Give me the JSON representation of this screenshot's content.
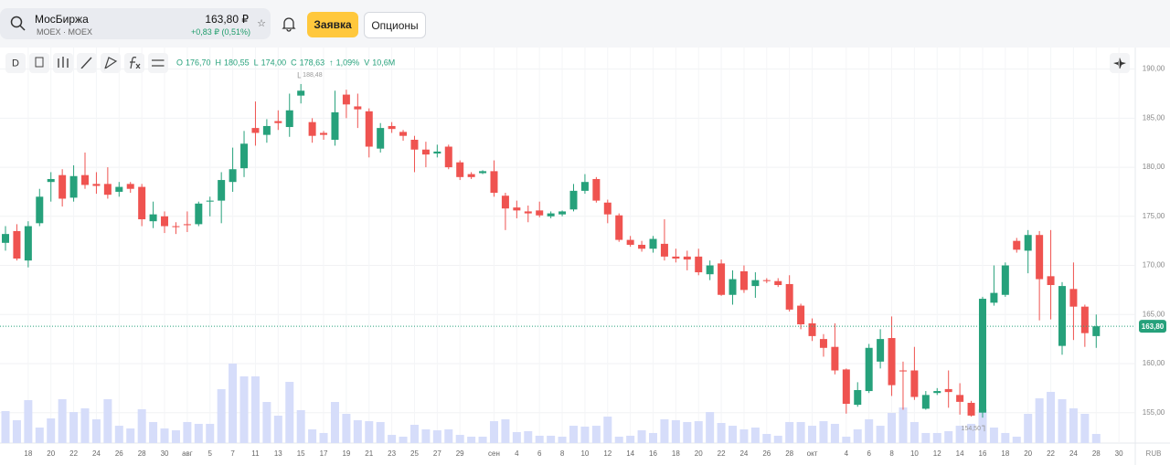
{
  "header": {
    "exchange": "МосБиржа",
    "ticker": "MOEX · MOEX",
    "price": "163,80 ₽",
    "change": "+0,83 ₽ (0,51%)",
    "order_button": "Заявка",
    "options_button": "Опционы"
  },
  "toolbar": {
    "interval": "D"
  },
  "chart_data": {
    "type": "candlestick",
    "categories": [
      null,
      null,
      "18",
      null,
      "20",
      null,
      "22",
      null,
      "24",
      null,
      "26",
      null,
      "28",
      null,
      "30",
      null,
      "авг",
      null,
      "5",
      null,
      "7",
      null,
      "11",
      null,
      "13",
      null,
      "15",
      null,
      "17",
      null,
      "19",
      null,
      "21",
      null,
      "23",
      null,
      "25",
      null,
      "27",
      null,
      "29",
      null,
      null,
      "сен",
      null,
      "4",
      null,
      "6",
      null,
      "8",
      null,
      "10",
      null,
      "12",
      null,
      "14",
      null,
      "16",
      null,
      "18",
      null,
      "20",
      null,
      "22",
      null,
      "24",
      null,
      "26",
      null,
      "28",
      null,
      "окт",
      null,
      null,
      "4",
      null,
      "6",
      null,
      "8",
      null,
      "10",
      null,
      "12",
      null,
      "14",
      null,
      "16",
      null,
      "18",
      null,
      "20",
      null,
      "22",
      null,
      "24",
      null,
      "28",
      null,
      "30"
    ],
    "open": [
      172.3,
      173.5,
      170.5,
      174.3,
      178.5,
      179.2,
      176.9,
      179.2,
      178.3,
      178.3,
      177.5,
      178.3,
      178.0,
      174.5,
      175.0,
      174.0,
      174.2,
      174.2,
      176.5,
      176.6,
      178.5,
      179.9,
      184.0,
      183.3,
      184.7,
      184.1,
      187.3,
      184.6,
      183.5,
      182.8,
      187.4,
      186.2,
      185.7,
      181.9,
      184.2,
      183.6,
      182.8,
      181.8,
      181.4,
      182.1,
      180.5,
      179.3,
      179.4,
      179.6,
      177.1,
      175.9,
      175.5,
      175.6,
      175.0,
      175.2,
      175.7,
      177.6,
      178.8,
      176.4,
      175.1,
      172.6,
      172.1,
      171.7,
      172.2,
      170.9,
      170.9,
      170.9,
      169.1,
      170.2,
      167.0,
      169.4,
      167.9,
      168.5,
      168.4,
      168.1,
      165.9,
      164.1,
      162.5,
      161.7,
      159.4,
      155.8,
      157.2,
      160.2,
      162.6,
      159.3,
      159.3,
      155.4,
      157.0,
      157.4,
      156.8,
      156.0,
      155.0,
      166.2,
      167.0,
      172.5,
      171.5,
      173.1,
      168.9,
      161.8,
      167.6,
      165.8,
      162.8,
      null,
      null
    ],
    "high": [
      174,
      174.2,
      174.5,
      177.8,
      179.5,
      179.8,
      180.2,
      181.5,
      179.5,
      180,
      178.5,
      178.5,
      178.3,
      176.5,
      175.5,
      174.4,
      175.5,
      176.5,
      177,
      179.5,
      182,
      183.7,
      186.7,
      184.9,
      185.8,
      187.5,
      188.48,
      185,
      183.7,
      187.8,
      187.9,
      187.5,
      186,
      184.5,
      184.6,
      183.8,
      183.2,
      182.6,
      182.3,
      182.3,
      180.7,
      179.5,
      179.7,
      180.7,
      177.4,
      176.6,
      176.1,
      176.5,
      175.5,
      175.6,
      178.3,
      179.3,
      179,
      176.7,
      175.3,
      173,
      172.5,
      173,
      174.7,
      171.7,
      171.5,
      171.7,
      170.5,
      170.6,
      169.5,
      170,
      169.3,
      168.7,
      168.7,
      169,
      166.1,
      164.6,
      163,
      164.1,
      159.5,
      158.1,
      162,
      163.5,
      164.8,
      160.2,
      161.7,
      157.2,
      157.5,
      159.3,
      158,
      156.2,
      166.8,
      170,
      170.3,
      172.8,
      173.6,
      173.5,
      173.6,
      168.3,
      170.3,
      166,
      165,
      null,
      null
    ],
    "low": [
      171.5,
      170.5,
      169.8,
      174,
      176.5,
      176,
      176.5,
      177.8,
      177.3,
      176.8,
      177,
      177.4,
      174,
      173.8,
      173.3,
      173.2,
      173.4,
      174,
      175,
      174.3,
      177.5,
      179,
      182.2,
      182.5,
      183.8,
      183.1,
      186.5,
      182.5,
      182.8,
      182.2,
      185,
      184,
      181,
      181.5,
      183.5,
      182.7,
      179.5,
      180,
      181,
      179.8,
      178.7,
      178.8,
      179.3,
      177,
      173.6,
      174.8,
      174.4,
      174.9,
      174.8,
      175,
      175.5,
      177.3,
      176.4,
      174.3,
      172.4,
      171.9,
      171.4,
      171.3,
      170.5,
      170.3,
      169.5,
      169,
      168.5,
      166.9,
      166,
      167.2,
      166.7,
      168.2,
      167.8,
      165.3,
      163.5,
      162.3,
      160.7,
      158.9,
      154.9,
      155.6,
      157,
      159.5,
      156.7,
      155.3,
      156.3,
      155.3,
      156.8,
      155.5,
      154.8,
      154.6,
      154.5,
      165.9,
      166.8,
      171.3,
      169.2,
      164.4,
      164.5,
      160.9,
      162.4,
      161.7,
      161.6,
      null,
      null
    ],
    "close": [
      173.2,
      170.7,
      174,
      177,
      178.8,
      176.8,
      179.1,
      178.2,
      178.1,
      177.2,
      178,
      177.8,
      174.7,
      175.2,
      174,
      173.9,
      174.1,
      176.3,
      176.6,
      178.7,
      179.8,
      182.4,
      183.5,
      184.2,
      184.5,
      185.8,
      187.8,
      183.2,
      183.3,
      185.6,
      186.4,
      185.9,
      182.1,
      184,
      183.9,
      183.2,
      181.8,
      181.3,
      181.6,
      180,
      179,
      179,
      179.6,
      177.4,
      175.8,
      175.6,
      175.3,
      175.1,
      175.3,
      175.5,
      177.6,
      178.5,
      176.6,
      175.2,
      172.6,
      172.1,
      171.7,
      172.7,
      170.9,
      170.7,
      170.6,
      169.3,
      170,
      167,
      168.6,
      167.5,
      168.5,
      168.4,
      168,
      165.5,
      164,
      162.8,
      161.6,
      159.3,
      155.9,
      157.3,
      161.6,
      162.5,
      157.8,
      159.2,
      156.6,
      156.8,
      157.2,
      157.1,
      156.1,
      154.7,
      166.6,
      167.2,
      170,
      171.6,
      173.1,
      168.6,
      168,
      167.9,
      165.8,
      163.1,
      163.8,
      null,
      null
    ],
    "volume": [
      37.1,
      26.5,
      49.8,
      18.0,
      28.6,
      50.9,
      36.0,
      40.3,
      27.6,
      50.9,
      20.1,
      17.0,
      39.2,
      24.4,
      17.0,
      14.8,
      24.4,
      22.3,
      22.3,
      62.5,
      92.2,
      77.4,
      77.4,
      47.7,
      31.8,
      71.0,
      38.2,
      15.9,
      11.7,
      47.7,
      33.9,
      26.5,
      25.4,
      24.4,
      9.5,
      7.4,
      21.2,
      15.9,
      14.8,
      15.9,
      9.5,
      7.4,
      7.4,
      25.4,
      27.6,
      12.7,
      13.8,
      8.5,
      8.5,
      7.4,
      20.1,
      19.1,
      20.1,
      30.7,
      7.4,
      8.5,
      14.8,
      11.7,
      27.6,
      26.5,
      24.4,
      25.4,
      36.0,
      23.3,
      20.1,
      15.9,
      18.0,
      10.6,
      8.5,
      24.4,
      24.4,
      20.1,
      25.4,
      22.3,
      7.4,
      15.9,
      27.6,
      20.1,
      35.0,
      41.3,
      24.4,
      11.7,
      11.7,
      13.8,
      20.1,
      22.3,
      39.2,
      18.0,
      11.7,
      7.4,
      33.9,
      51.9,
      59.4,
      50.9,
      40.3,
      33.9,
      10.6,
      null,
      null
    ],
    "up_color": "#26a17b",
    "down_color": "#ef5350",
    "volume_color": "#d6ddfa",
    "ylim": [
      151.9,
      192.2
    ],
    "yticks": [
      {
        "value": 155,
        "label": "155,00"
      },
      {
        "value": 160,
        "label": "160,00"
      },
      {
        "value": 165,
        "label": "165,00"
      },
      {
        "value": 170,
        "label": "170,00"
      },
      {
        "value": 175,
        "label": "175,00"
      },
      {
        "value": 180,
        "label": "180,00"
      },
      {
        "value": 185,
        "label": "185,00"
      },
      {
        "value": 190,
        "label": "190,00"
      }
    ],
    "grid": true,
    "currency": "RUB",
    "last_price": {
      "value": 163.8,
      "label": "163,80"
    },
    "legend": [
      {
        "key": "O",
        "value": "176,70"
      },
      {
        "key": "H",
        "value": "180,55"
      },
      {
        "key": "L",
        "value": "174,00"
      },
      {
        "key": "C",
        "value": "178,63"
      },
      {
        "key": "↑",
        "value": "1,09%"
      },
      {
        "key": "V",
        "value": "10,6M"
      }
    ],
    "annotations": [
      {
        "field": "high",
        "value": 188.48,
        "label": "188,48"
      },
      {
        "field": "low",
        "value": 154.5,
        "label": "154,50"
      }
    ]
  }
}
